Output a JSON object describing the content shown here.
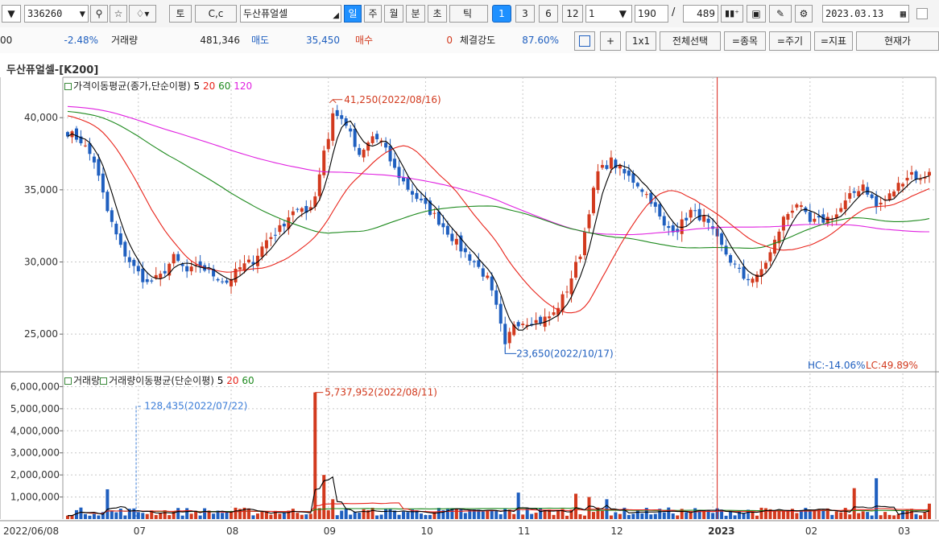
{
  "toolbar": {
    "code_value": "336260",
    "stock_name": "두산퓨얼셀",
    "period_buttons": [
      "일",
      "주",
      "월",
      "분",
      "초",
      "틱"
    ],
    "num_buttons": [
      "1",
      "3",
      "6",
      "12"
    ],
    "interval_value": "1",
    "count_value": "190",
    "count_total": "489",
    "text_btn1": "토",
    "text_btn2": "C,c",
    "date_value": "2023.03.13",
    "icons": [
      "dropdown-icon",
      "search-icon",
      "star-icon",
      "bell-icon",
      "candlestick-icon",
      "save-icon",
      "pen-icon",
      "settings-icon",
      "calendar-icon"
    ]
  },
  "quote": {
    "price_partial": "00",
    "change_pct": "-2.48%",
    "volume_label": "거래량",
    "volume_value": "481,346",
    "sell_label": "매도",
    "sell_value": "35,450",
    "buy_label": "매수",
    "buy_value": "0",
    "strength_label": "체결강도",
    "strength_value": "87.60%",
    "plus_label": "+",
    "layout_label": "1x1",
    "select_all": "전체선택",
    "item_btn": "=종목",
    "period_btn": "=주기",
    "indicator_btn": "=지표",
    "current_btn": "현재가"
  },
  "chart_title": "두산퓨얼셀-[K200]",
  "colors": {
    "up": "#d23a1e",
    "down": "#1f5fbf",
    "ma5": "#000000",
    "ma20": "#e8231a",
    "ma60": "#1e8a1e",
    "ma120": "#e020e0",
    "cursor": "#d9241b"
  },
  "chart_data": [
    {
      "type": "candlestick",
      "title": "가격이동평균(종가,단순이평)",
      "legend": [
        "5",
        "20",
        "60",
        "120"
      ],
      "x_labels": [
        "2022/06/08",
        "07",
        "08",
        "09",
        "10",
        "11",
        "12",
        "2023",
        "02",
        "03"
      ],
      "y_ticks": [
        "40,000",
        "35,000",
        "30,000",
        "25,000"
      ],
      "ylim": [
        22500,
        42800
      ],
      "max_annotation": "41,250(2022/08/16)",
      "min_annotation": "23,650(2022/10/17)",
      "hc_label": "HC:-14.06%",
      "lc_label": "LC:49.89%",
      "close_path": [
        [
          0,
          39000
        ],
        [
          3,
          38400
        ],
        [
          6,
          37000
        ],
        [
          9,
          33500
        ],
        [
          12,
          31000
        ],
        [
          15,
          29600
        ],
        [
          18,
          28500
        ],
        [
          21,
          29000
        ],
        [
          24,
          30300
        ],
        [
          27,
          29300
        ],
        [
          30,
          29700
        ],
        [
          33,
          29100
        ],
        [
          36,
          28600
        ],
        [
          39,
          29600
        ],
        [
          42,
          30100
        ],
        [
          45,
          31500
        ],
        [
          48,
          32300
        ],
        [
          51,
          33600
        ],
        [
          54,
          33400
        ],
        [
          56,
          34600
        ],
        [
          58,
          37800
        ],
        [
          61,
          40100
        ],
        [
          63,
          39600
        ],
        [
          66,
          37200
        ],
        [
          69,
          38700
        ],
        [
          71,
          38300
        ],
        [
          74,
          36400
        ],
        [
          77,
          35100
        ],
        [
          80,
          34100
        ],
        [
          83,
          33200
        ],
        [
          86,
          32100
        ],
        [
          89,
          30900
        ],
        [
          92,
          30000
        ],
        [
          95,
          28800
        ],
        [
          97,
          26800
        ],
        [
          99,
          24200
        ],
        [
          101,
          25800
        ],
        [
          104,
          25900
        ],
        [
          107,
          25900
        ],
        [
          110,
          26400
        ],
        [
          113,
          28100
        ],
        [
          116,
          30600
        ],
        [
          118,
          33600
        ],
        [
          120,
          36200
        ],
        [
          123,
          37000
        ],
        [
          126,
          36100
        ],
        [
          129,
          35400
        ],
        [
          132,
          34300
        ],
        [
          135,
          32400
        ],
        [
          138,
          32300
        ],
        [
          141,
          33500
        ],
        [
          144,
          33000
        ],
        [
          147,
          31500
        ],
        [
          150,
          30100
        ],
        [
          153,
          28900
        ],
        [
          156,
          28900
        ],
        [
          159,
          30600
        ],
        [
          162,
          33000
        ],
        [
          165,
          34100
        ],
        [
          168,
          32700
        ],
        [
          171,
          32900
        ],
        [
          174,
          33300
        ],
        [
          177,
          34500
        ],
        [
          180,
          35400
        ],
        [
          183,
          33800
        ],
        [
          186,
          34600
        ],
        [
          189,
          35700
        ],
        [
          191,
          36200
        ],
        [
          193,
          35600
        ],
        [
          195,
          36400
        ]
      ]
    },
    {
      "type": "bar",
      "title": "거래량",
      "ma_title": "거래량이동평균(단순이평)",
      "legend": [
        "5",
        "20",
        "60"
      ],
      "y_ticks": [
        "6,000,000",
        "5,000,000",
        "4,000,000",
        "3,000,000",
        "2,000,000",
        "1,000,000"
      ],
      "ylim": [
        0,
        6600000
      ],
      "max_annotation": "5,737,952(2022/08/11)",
      "min_annotation": "128,435(2022/07/22)",
      "spikes": [
        [
          9,
          1350000
        ],
        [
          56,
          5737952
        ],
        [
          58,
          2000000
        ],
        [
          60,
          900000
        ],
        [
          102,
          1200000
        ],
        [
          115,
          1150000
        ],
        [
          118,
          1000000
        ],
        [
          122,
          900000
        ],
        [
          178,
          1400000
        ],
        [
          183,
          1850000
        ],
        [
          195,
          700000
        ]
      ]
    }
  ]
}
